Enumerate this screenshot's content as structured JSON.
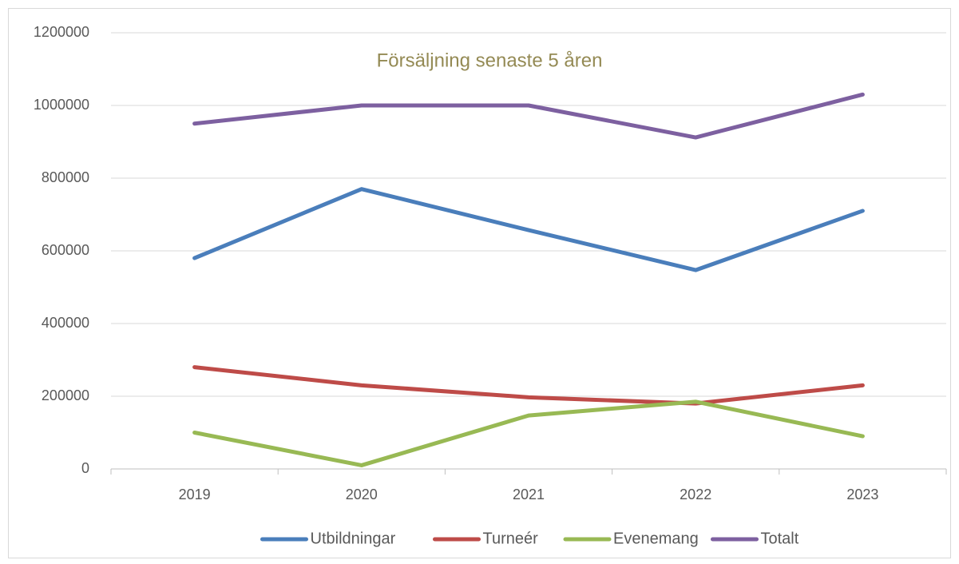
{
  "chart_data": {
    "type": "line",
    "title": "Försäljning senaste 5 åren",
    "categories": [
      "2019",
      "2020",
      "2021",
      "2022",
      "2023"
    ],
    "series": [
      {
        "name": "Utbildningar",
        "color": "#4a7ebb",
        "values": [
          580000,
          770000,
          657000,
          547000,
          710000
        ]
      },
      {
        "name": "Turneér",
        "color": "#be4b48",
        "values": [
          280000,
          230000,
          197000,
          180000,
          230000
        ]
      },
      {
        "name": "Evenemang",
        "color": "#98b954",
        "values": [
          100000,
          10000,
          147000,
          185000,
          90000
        ]
      },
      {
        "name": "Totalt",
        "color": "#7d60a0",
        "values": [
          950000,
          1000000,
          1000000,
          912000,
          1030000
        ]
      }
    ],
    "ylim": [
      0,
      1200000
    ],
    "yticks": [
      0,
      200000,
      400000,
      600000,
      800000,
      1000000,
      1200000
    ],
    "grid": true,
    "legend": "bottom"
  }
}
